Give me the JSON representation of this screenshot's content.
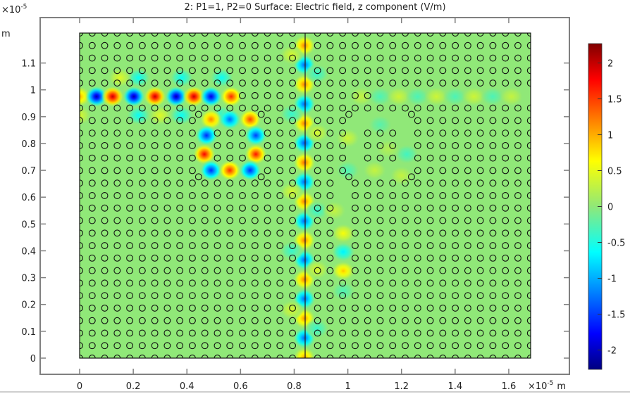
{
  "chart_data": {
    "type": "heatmap",
    "title": "2: P1=1, P2=0   Surface: Electric field, z component (V/m)",
    "x_axis": {
      "unit_exponent": "×10",
      "exponent": "-5",
      "unit": "m",
      "ticks": [
        "0",
        "0.2",
        "0.4",
        "0.6",
        "0.8",
        "1",
        "1.2",
        "1.4",
        "1.6"
      ],
      "tick_values": [
        0,
        0.2,
        0.4,
        0.6,
        0.8,
        1,
        1.2,
        1.4,
        1.6
      ],
      "range": [
        0,
        1.68
      ]
    },
    "y_axis": {
      "unit_exponent": "×10",
      "exponent": "-5",
      "unit": "m",
      "ticks": [
        "0",
        "0.1",
        "0.2",
        "0.3",
        "0.4",
        "0.5",
        "0.6",
        "0.7",
        "0.8",
        "0.9",
        "1",
        "1.1"
      ],
      "tick_values": [
        0,
        0.1,
        0.2,
        0.3,
        0.4,
        0.5,
        0.6,
        0.7,
        0.8,
        0.9,
        1,
        1.1
      ],
      "range": [
        0,
        1.21
      ]
    },
    "colorbar": {
      "range": [
        -2.27,
        2.27
      ],
      "ticks": [
        "-2",
        "-1.5",
        "-1",
        "-0.5",
        "0",
        "0.5",
        "1",
        "1.5",
        "2"
      ],
      "tick_values": [
        -2,
        -1.5,
        -1,
        -0.5,
        0,
        0.5,
        1,
        1.5,
        2
      ],
      "colormap": [
        "#000080",
        "#0000ff",
        "#00ffff",
        "#90e878",
        "#ffff00",
        "#ff0000",
        "#800000"
      ]
    },
    "background_value": 0,
    "field_peaks": [
      {
        "x": 0.0,
        "y": 0.975,
        "v": 1.0
      },
      {
        "x": 0.063,
        "y": 0.975,
        "v": -2.1
      },
      {
        "x": 0.123,
        "y": 0.975,
        "v": 2.0
      },
      {
        "x": 0.202,
        "y": 0.975,
        "v": -2.1
      },
      {
        "x": 0.281,
        "y": 0.975,
        "v": 2.0
      },
      {
        "x": 0.36,
        "y": 0.975,
        "v": -2.1
      },
      {
        "x": 0.426,
        "y": 0.975,
        "v": 2.0
      },
      {
        "x": 0.49,
        "y": 0.975,
        "v": -1.9
      },
      {
        "x": 0.565,
        "y": 0.975,
        "v": 1.6
      },
      {
        "x": 0.22,
        "y": 1.045,
        "v": -0.6
      },
      {
        "x": 0.22,
        "y": 0.905,
        "v": -0.6
      },
      {
        "x": 0.38,
        "y": 1.045,
        "v": -0.6
      },
      {
        "x": 0.38,
        "y": 0.905,
        "v": -0.6
      },
      {
        "x": 0.53,
        "y": 1.045,
        "v": -0.6
      },
      {
        "x": 0.53,
        "y": 0.905,
        "v": -0.5
      },
      {
        "x": 0.15,
        "y": 1.045,
        "v": 0.45
      },
      {
        "x": 0.3,
        "y": 0.905,
        "v": 0.45
      },
      {
        "x": 0.0,
        "y": 0.905,
        "v": 0.4
      },
      {
        "x": 0.49,
        "y": 0.89,
        "v": 1.2
      },
      {
        "x": 0.56,
        "y": 0.89,
        "v": -1.3
      },
      {
        "x": 0.636,
        "y": 0.89,
        "v": 1.5
      },
      {
        "x": 0.473,
        "y": 0.83,
        "v": -1.6
      },
      {
        "x": 0.657,
        "y": 0.83,
        "v": -1.5
      },
      {
        "x": 0.465,
        "y": 0.76,
        "v": 1.8
      },
      {
        "x": 0.657,
        "y": 0.76,
        "v": 1.7
      },
      {
        "x": 0.49,
        "y": 0.7,
        "v": -1.6
      },
      {
        "x": 0.56,
        "y": 0.7,
        "v": 1.6
      },
      {
        "x": 0.636,
        "y": 0.7,
        "v": -1.6
      },
      {
        "x": 0.838,
        "y": 1.165,
        "v": 1.2
      },
      {
        "x": 0.838,
        "y": 1.093,
        "v": -1.3
      },
      {
        "x": 0.838,
        "y": 1.02,
        "v": 1.2
      },
      {
        "x": 0.838,
        "y": 0.947,
        "v": -1.3
      },
      {
        "x": 0.838,
        "y": 0.875,
        "v": 1.2
      },
      {
        "x": 0.838,
        "y": 0.802,
        "v": -1.4
      },
      {
        "x": 0.838,
        "y": 0.729,
        "v": 1.3
      },
      {
        "x": 0.838,
        "y": 0.657,
        "v": -1.3
      },
      {
        "x": 0.838,
        "y": 0.584,
        "v": 1.2
      },
      {
        "x": 0.838,
        "y": 0.511,
        "v": -1.3
      },
      {
        "x": 0.838,
        "y": 0.439,
        "v": 1.2
      },
      {
        "x": 0.838,
        "y": 0.366,
        "v": -1.3
      },
      {
        "x": 0.838,
        "y": 0.293,
        "v": 1.2
      },
      {
        "x": 0.838,
        "y": 0.221,
        "v": -1.3
      },
      {
        "x": 0.838,
        "y": 0.148,
        "v": 1.1
      },
      {
        "x": 0.838,
        "y": 0.075,
        "v": -1.3
      },
      {
        "x": 0.838,
        "y": 0.003,
        "v": 1.0
      },
      {
        "x": 0.79,
        "y": 1.13,
        "v": 0.4
      },
      {
        "x": 0.885,
        "y": 1.06,
        "v": -0.4
      },
      {
        "x": 0.79,
        "y": 0.91,
        "v": -0.4
      },
      {
        "x": 0.885,
        "y": 0.84,
        "v": 0.4
      },
      {
        "x": 0.79,
        "y": 0.62,
        "v": 0.4
      },
      {
        "x": 0.885,
        "y": 0.55,
        "v": -0.4
      },
      {
        "x": 0.79,
        "y": 0.4,
        "v": -0.4
      },
      {
        "x": 0.885,
        "y": 0.33,
        "v": 0.4
      },
      {
        "x": 0.79,
        "y": 0.18,
        "v": 0.4
      },
      {
        "x": 0.885,
        "y": 0.11,
        "v": -0.4
      },
      {
        "x": 1.05,
        "y": 0.975,
        "v": 0.3
      },
      {
        "x": 1.12,
        "y": 0.975,
        "v": -0.3
      },
      {
        "x": 1.19,
        "y": 0.975,
        "v": 0.35
      },
      {
        "x": 1.26,
        "y": 0.975,
        "v": -0.3
      },
      {
        "x": 1.33,
        "y": 0.975,
        "v": 0.35
      },
      {
        "x": 1.4,
        "y": 0.975,
        "v": -0.3
      },
      {
        "x": 1.47,
        "y": 0.975,
        "v": 0.35
      },
      {
        "x": 1.54,
        "y": 0.975,
        "v": -0.3
      },
      {
        "x": 1.61,
        "y": 0.975,
        "v": 0.3
      },
      {
        "x": 1.0,
        "y": 0.82,
        "v": 0.35
      },
      {
        "x": 1.12,
        "y": 0.87,
        "v": -0.25
      },
      {
        "x": 1.22,
        "y": 0.76,
        "v": -0.35
      },
      {
        "x": 1.0,
        "y": 0.7,
        "v": -0.3
      },
      {
        "x": 1.1,
        "y": 0.7,
        "v": 0.3
      },
      {
        "x": 1.2,
        "y": 0.68,
        "v": 0.3
      },
      {
        "x": 1.15,
        "y": 0.78,
        "v": 0.2
      },
      {
        "x": 0.95,
        "y": 0.55,
        "v": 0.3
      },
      {
        "x": 0.983,
        "y": 0.465,
        "v": 0.6
      },
      {
        "x": 0.983,
        "y": 0.396,
        "v": -0.7
      },
      {
        "x": 0.983,
        "y": 0.325,
        "v": 0.9
      },
      {
        "x": 0.983,
        "y": 0.25,
        "v": -0.3
      }
    ]
  }
}
